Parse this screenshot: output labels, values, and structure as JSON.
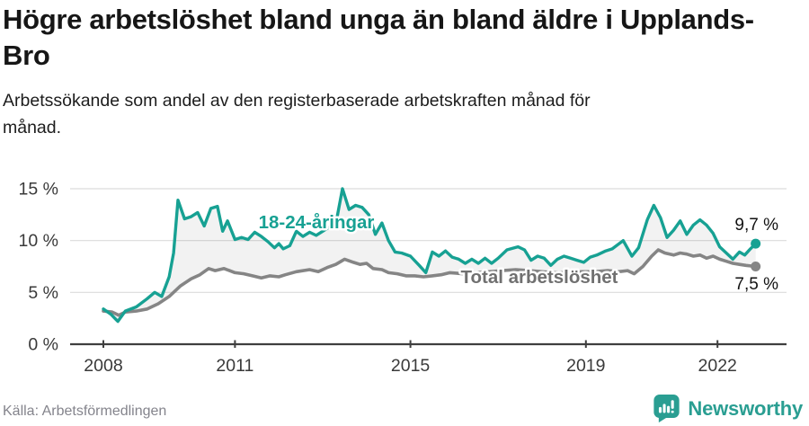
{
  "header": {
    "title": "Högre arbetslöshet bland unga än bland äldre i Upplands-Bro",
    "subtitle": "Arbetssökande som andel av den registerbaserade arbetskraften månad för månad."
  },
  "footer": {
    "source": "Källa: Arbetsförmedlingen",
    "brand_name": "Newsworthy",
    "brand_icon": "bar-chart-speech-bubble-icon"
  },
  "colors": {
    "young_line": "#17a193",
    "total_line": "#858585",
    "total_label": "#707070",
    "area_fill": "rgba(0,0,0,0.05)",
    "grid": "#dcdcdc",
    "axis": "#3f3f3f",
    "tick_label": "#3a3a3a",
    "value_label": "#121212",
    "brand": "#2a9e92",
    "background": "#ffffff"
  },
  "chart_data": {
    "type": "line",
    "unit": "%",
    "x_axis": {
      "ticks": [
        "2008",
        "2011",
        "2015",
        "2019",
        "2022"
      ],
      "tick_values": [
        2008,
        2011,
        2015,
        2019,
        2022
      ],
      "range": [
        2008.0,
        2023.1
      ]
    },
    "y_axis": {
      "ticks": [
        "0 %",
        "5 %",
        "10 %",
        "15 %"
      ],
      "tick_values": [
        0,
        5,
        10,
        15
      ],
      "range": [
        0,
        15.6
      ],
      "grid": true
    },
    "legend_position": "inline-labels",
    "series": [
      {
        "name": "18-24-åringar",
        "end_label": "9,7 %",
        "end_value": 9.7,
        "points": [
          [
            2008.0,
            3.4
          ],
          [
            2008.17,
            2.9
          ],
          [
            2008.33,
            2.2
          ],
          [
            2008.5,
            3.2
          ],
          [
            2008.75,
            3.6
          ],
          [
            2009.0,
            4.4
          ],
          [
            2009.17,
            5.0
          ],
          [
            2009.33,
            4.6
          ],
          [
            2009.5,
            6.5
          ],
          [
            2009.6,
            8.8
          ],
          [
            2009.7,
            13.9
          ],
          [
            2009.85,
            12.1
          ],
          [
            2010.0,
            12.3
          ],
          [
            2010.15,
            12.7
          ],
          [
            2010.3,
            11.4
          ],
          [
            2010.45,
            13.1
          ],
          [
            2010.6,
            13.3
          ],
          [
            2010.72,
            10.9
          ],
          [
            2010.83,
            11.9
          ],
          [
            2011.0,
            10.1
          ],
          [
            2011.15,
            10.3
          ],
          [
            2011.3,
            10.1
          ],
          [
            2011.45,
            10.8
          ],
          [
            2011.6,
            10.4
          ],
          [
            2011.75,
            9.9
          ],
          [
            2011.9,
            9.3
          ],
          [
            2012.0,
            9.7
          ],
          [
            2012.1,
            9.2
          ],
          [
            2012.25,
            9.5
          ],
          [
            2012.4,
            10.9
          ],
          [
            2012.55,
            10.4
          ],
          [
            2012.7,
            10.8
          ],
          [
            2012.85,
            10.5
          ],
          [
            2013.0,
            10.9
          ],
          [
            2013.15,
            11.3
          ],
          [
            2013.3,
            11.6
          ],
          [
            2013.45,
            15.0
          ],
          [
            2013.6,
            13.0
          ],
          [
            2013.75,
            13.4
          ],
          [
            2013.9,
            13.2
          ],
          [
            2014.05,
            12.5
          ],
          [
            2014.2,
            10.6
          ],
          [
            2014.35,
            11.7
          ],
          [
            2014.5,
            10.0
          ],
          [
            2014.65,
            8.9
          ],
          [
            2014.8,
            8.8
          ],
          [
            2015.0,
            8.5
          ],
          [
            2015.2,
            7.6
          ],
          [
            2015.35,
            6.9
          ],
          [
            2015.5,
            8.9
          ],
          [
            2015.65,
            8.5
          ],
          [
            2015.8,
            9.0
          ],
          [
            2015.95,
            8.4
          ],
          [
            2016.1,
            8.2
          ],
          [
            2016.25,
            7.8
          ],
          [
            2016.4,
            8.2
          ],
          [
            2016.55,
            7.8
          ],
          [
            2016.7,
            8.3
          ],
          [
            2016.85,
            7.8
          ],
          [
            2017.0,
            8.3
          ],
          [
            2017.2,
            9.1
          ],
          [
            2017.45,
            9.4
          ],
          [
            2017.6,
            9.1
          ],
          [
            2017.75,
            8.1
          ],
          [
            2017.9,
            8.5
          ],
          [
            2018.05,
            8.3
          ],
          [
            2018.2,
            7.6
          ],
          [
            2018.35,
            8.2
          ],
          [
            2018.5,
            8.5
          ],
          [
            2018.65,
            8.3
          ],
          [
            2018.8,
            8.1
          ],
          [
            2018.95,
            7.9
          ],
          [
            2019.1,
            8.4
          ],
          [
            2019.25,
            8.6
          ],
          [
            2019.45,
            9.0
          ],
          [
            2019.6,
            9.2
          ],
          [
            2019.85,
            10.0
          ],
          [
            2020.05,
            8.5
          ],
          [
            2020.2,
            9.3
          ],
          [
            2020.4,
            12.0
          ],
          [
            2020.55,
            13.4
          ],
          [
            2020.7,
            12.2
          ],
          [
            2020.85,
            10.3
          ],
          [
            2021.0,
            11.0
          ],
          [
            2021.15,
            11.9
          ],
          [
            2021.3,
            10.6
          ],
          [
            2021.45,
            11.5
          ],
          [
            2021.6,
            12.0
          ],
          [
            2021.75,
            11.5
          ],
          [
            2021.9,
            10.7
          ],
          [
            2022.05,
            9.4
          ],
          [
            2022.2,
            8.8
          ],
          [
            2022.35,
            8.2
          ],
          [
            2022.5,
            8.9
          ],
          [
            2022.62,
            8.6
          ],
          [
            2022.75,
            9.2
          ],
          [
            2022.87,
            9.7
          ]
        ]
      },
      {
        "name": "Total arbetslöshet",
        "end_label": "7,5 %",
        "end_value": 7.5,
        "points": [
          [
            2008.0,
            3.2
          ],
          [
            2008.2,
            3.1
          ],
          [
            2008.35,
            2.8
          ],
          [
            2008.5,
            3.1
          ],
          [
            2008.75,
            3.2
          ],
          [
            2009.0,
            3.4
          ],
          [
            2009.25,
            3.9
          ],
          [
            2009.5,
            4.6
          ],
          [
            2009.75,
            5.6
          ],
          [
            2010.0,
            6.3
          ],
          [
            2010.2,
            6.7
          ],
          [
            2010.4,
            7.3
          ],
          [
            2010.55,
            7.1
          ],
          [
            2010.75,
            7.3
          ],
          [
            2011.0,
            6.9
          ],
          [
            2011.2,
            6.8
          ],
          [
            2011.4,
            6.6
          ],
          [
            2011.6,
            6.4
          ],
          [
            2011.8,
            6.6
          ],
          [
            2012.0,
            6.5
          ],
          [
            2012.15,
            6.7
          ],
          [
            2012.4,
            7.0
          ],
          [
            2012.7,
            7.2
          ],
          [
            2012.9,
            7.0
          ],
          [
            2013.1,
            7.4
          ],
          [
            2013.3,
            7.7
          ],
          [
            2013.5,
            8.2
          ],
          [
            2013.7,
            7.9
          ],
          [
            2013.85,
            7.7
          ],
          [
            2014.0,
            7.8
          ],
          [
            2014.15,
            7.3
          ],
          [
            2014.35,
            7.2
          ],
          [
            2014.5,
            6.9
          ],
          [
            2014.7,
            6.8
          ],
          [
            2014.9,
            6.6
          ],
          [
            2015.1,
            6.6
          ],
          [
            2015.3,
            6.5
          ],
          [
            2015.5,
            6.6
          ],
          [
            2015.7,
            6.7
          ],
          [
            2015.9,
            6.9
          ],
          [
            2016.2,
            6.8
          ],
          [
            2016.5,
            6.9
          ],
          [
            2016.8,
            7.0
          ],
          [
            2017.1,
            7.1
          ],
          [
            2017.4,
            7.2
          ],
          [
            2017.7,
            7.1
          ],
          [
            2018.0,
            7.0
          ],
          [
            2018.3,
            6.9
          ],
          [
            2018.6,
            6.9
          ],
          [
            2018.9,
            7.0
          ],
          [
            2019.2,
            7.0
          ],
          [
            2019.5,
            7.1
          ],
          [
            2019.75,
            7.0
          ],
          [
            2019.95,
            7.1
          ],
          [
            2020.1,
            6.8
          ],
          [
            2020.3,
            7.5
          ],
          [
            2020.5,
            8.5
          ],
          [
            2020.65,
            9.1
          ],
          [
            2020.8,
            8.8
          ],
          [
            2021.0,
            8.6
          ],
          [
            2021.15,
            8.8
          ],
          [
            2021.3,
            8.7
          ],
          [
            2021.45,
            8.5
          ],
          [
            2021.6,
            8.6
          ],
          [
            2021.75,
            8.3
          ],
          [
            2021.9,
            8.5
          ],
          [
            2022.05,
            8.2
          ],
          [
            2022.2,
            8.0
          ],
          [
            2022.35,
            7.8
          ],
          [
            2022.5,
            7.7
          ],
          [
            2022.65,
            7.6
          ],
          [
            2022.87,
            7.5
          ]
        ]
      }
    ]
  }
}
